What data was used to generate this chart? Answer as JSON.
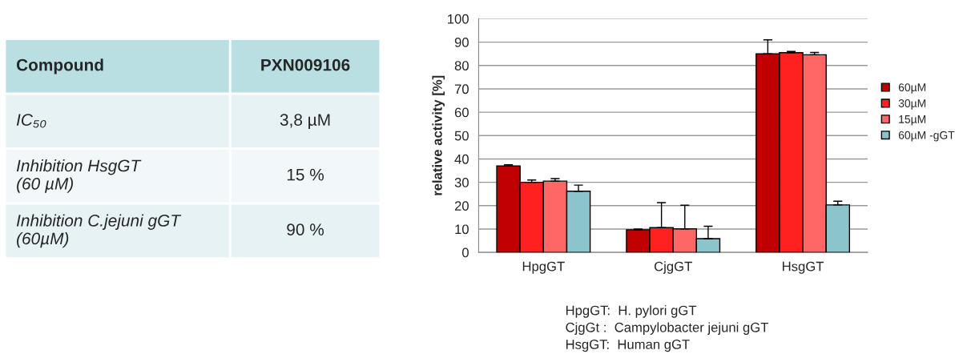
{
  "chart_data": [
    {
      "type": "other",
      "annotations": [
        "Compound",
        "PXN009106",
        "IC₅₀",
        "3,8 µM",
        "Inhibition HsgGT\n(60 µM)",
        "15 %",
        "Inhibition C.jejuni gGT\n(60µM)",
        "90 %"
      ]
    },
    {
      "type": "bar",
      "categories": [
        "HpgGT",
        "CjgGT",
        "HsgGT"
      ],
      "ylabel": "relative activity [%]",
      "ylim": [
        0,
        100
      ],
      "yticks": [
        0,
        10,
        20,
        30,
        40,
        50,
        60,
        70,
        80,
        90,
        100
      ],
      "grid": "y",
      "legend": "right",
      "series": [
        {
          "name": "60µM",
          "color": "#c00000",
          "values": [
            37,
            9.7,
            85
          ],
          "errors": [
            [
              37,
              37.5
            ],
            [
              9.7,
              10
            ],
            [
              85,
              91
            ]
          ]
        },
        {
          "name": "30µM",
          "color": "#ff2020",
          "values": [
            30,
            10.6,
            85.5
          ],
          "errors": [
            [
              30,
              31
            ],
            [
              10.6,
              21.3
            ],
            [
              85.5,
              86
            ]
          ]
        },
        {
          "name": "15µM",
          "color": "#ff6666",
          "values": [
            30.5,
            10.1,
            84.6
          ],
          "errors": [
            [
              30.5,
              31.6
            ],
            [
              10.1,
              20.2
            ],
            [
              84.6,
              85.6
            ]
          ]
        },
        {
          "name": "60µM -gGT",
          "color": "#8cc4cc",
          "values": [
            26.2,
            5.9,
            20.3
          ],
          "errors": [
            [
              26.2,
              28.8
            ],
            [
              5.9,
              11.2
            ],
            [
              20.3,
              21.9
            ]
          ]
        }
      ],
      "annotations": [
        "HpgGT:  H. pylori gGT",
        "CjgGt :  Campylobacter jejuni gGT",
        "HsgGT:  Human gGT"
      ]
    }
  ]
}
